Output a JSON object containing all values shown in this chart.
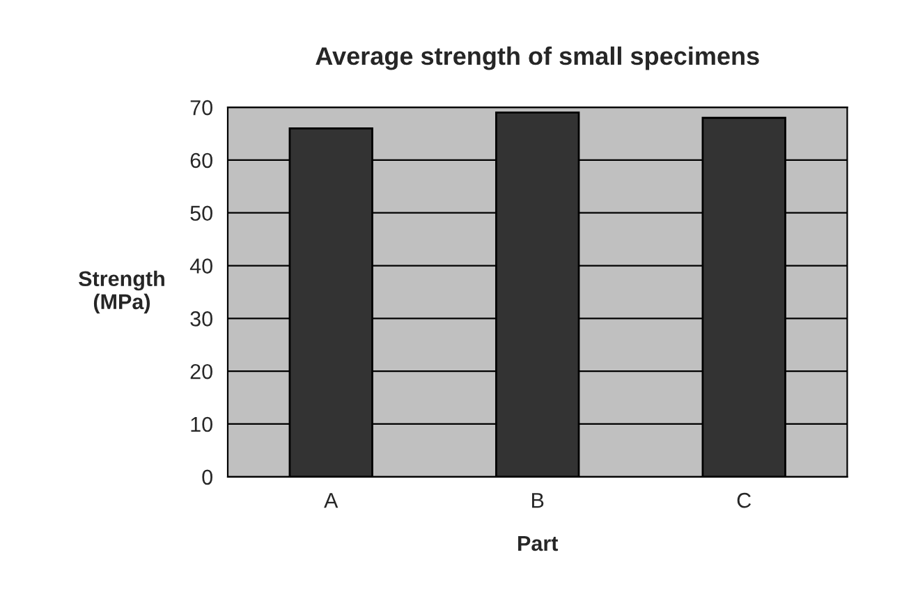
{
  "chart_data": {
    "type": "bar",
    "title": "Average strength of small specimens",
    "xlabel": "Part",
    "ylabel": "Strength\n(MPa)",
    "categories": [
      "A",
      "B",
      "C"
    ],
    "values": [
      66,
      69,
      68
    ],
    "color": "#333333",
    "ylim": [
      0,
      70
    ],
    "yticks": [
      0,
      10,
      20,
      30,
      40,
      50,
      60,
      70
    ],
    "grid": "y"
  }
}
